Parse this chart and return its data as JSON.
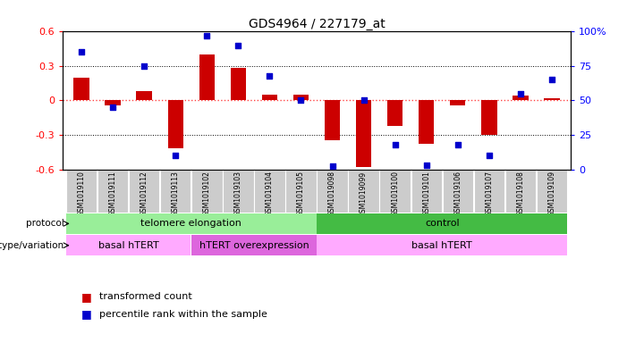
{
  "title": "GDS4964 / 227179_at",
  "samples": [
    "GSM1019110",
    "GSM1019111",
    "GSM1019112",
    "GSM1019113",
    "GSM1019102",
    "GSM1019103",
    "GSM1019104",
    "GSM1019105",
    "GSM1019098",
    "GSM1019099",
    "GSM1019100",
    "GSM1019101",
    "GSM1019106",
    "GSM1019107",
    "GSM1019108",
    "GSM1019109"
  ],
  "bar_values": [
    0.2,
    -0.04,
    0.08,
    -0.42,
    0.4,
    0.28,
    0.05,
    0.05,
    -0.35,
    -0.58,
    -0.22,
    -0.38,
    -0.04,
    -0.3,
    0.04,
    0.02
  ],
  "dot_values": [
    85,
    45,
    75,
    10,
    97,
    90,
    68,
    50,
    2,
    50,
    18,
    3,
    18,
    10,
    55,
    65
  ],
  "ylim": [
    -0.6,
    0.6
  ],
  "y2lim": [
    0,
    100
  ],
  "yticks": [
    -0.6,
    -0.3,
    0,
    0.3,
    0.6
  ],
  "y2ticks": [
    0,
    25,
    50,
    75,
    100
  ],
  "hlines": [
    0.3,
    -0.3
  ],
  "bar_color": "#CC0000",
  "dot_color": "#0000CC",
  "zero_line_color": "#FF4444",
  "hline_color": "#000000",
  "protocol_groups": [
    {
      "label": "telomere elongation",
      "start": 0,
      "end": 7,
      "color": "#99EE99"
    },
    {
      "label": "control",
      "start": 8,
      "end": 15,
      "color": "#44BB44"
    }
  ],
  "genotype_groups": [
    {
      "label": "basal hTERT",
      "start": 0,
      "end": 3,
      "color": "#FFAAFF"
    },
    {
      "label": "hTERT overexpression",
      "start": 4,
      "end": 7,
      "color": "#DD66DD"
    },
    {
      "label": "basal hTERT",
      "start": 8,
      "end": 15,
      "color": "#FFAAFF"
    }
  ],
  "legend_items": [
    {
      "label": "transformed count",
      "color": "#CC0000"
    },
    {
      "label": "percentile rank within the sample",
      "color": "#0000CC"
    }
  ],
  "xlabel_protocol": "protocol",
  "xlabel_genotype": "genotype/variation",
  "bar_width": 0.5,
  "sample_label_bg": "#CCCCCC"
}
